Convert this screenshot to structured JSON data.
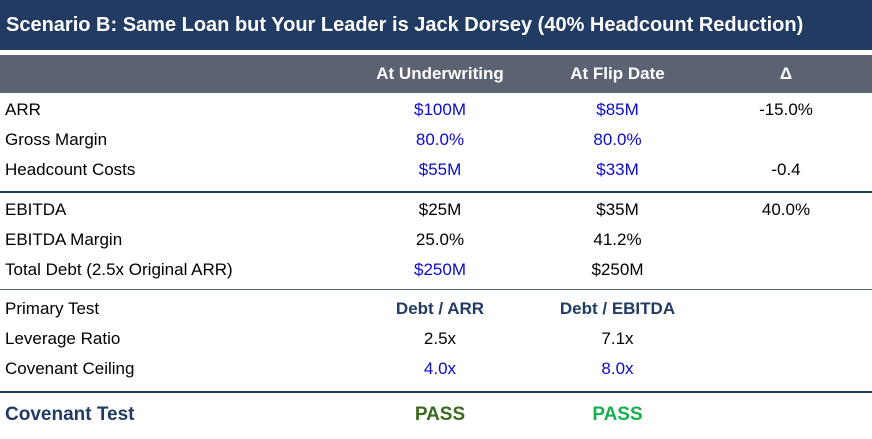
{
  "title": "Scenario B: Same Loan but Your Leader is Jack Dorsey (40% Headcount Reduction)",
  "header": {
    "col1": "At Underwriting",
    "col2": "At Flip Date",
    "col3": "Δ"
  },
  "rows": [
    {
      "label": "ARR",
      "col1": "$100M",
      "col2": "$85M",
      "col3": "-15.0%"
    },
    {
      "label": "Gross Margin",
      "col1": "80.0%",
      "col2": "80.0%",
      "col3": ""
    },
    {
      "label": "Headcount Costs",
      "col1": "$55M",
      "col2": "$33M",
      "col3": "-0.4"
    },
    {
      "label": "EBITDA",
      "col1": "$25M",
      "col2": "$35M",
      "col3": "40.0%"
    },
    {
      "label": "EBITDA Margin",
      "col1": "25.0%",
      "col2": "41.2%",
      "col3": ""
    },
    {
      "label": "Total Debt (2.5x Original ARR)",
      "col1": "$250M",
      "col2": "$250M",
      "col3": ""
    },
    {
      "label": "Primary Test",
      "col1": "Debt / ARR",
      "col2": "Debt / EBITDA",
      "col3": ""
    },
    {
      "label": "Leverage Ratio",
      "col1": "2.5x",
      "col2": "7.1x",
      "col3": ""
    },
    {
      "label": "Covenant Ceiling",
      "col1": "4.0x",
      "col2": "8.0x",
      "col3": ""
    }
  ],
  "covenant": {
    "label": "Covenant Test",
    "col1": "PASS",
    "col2": "PASS"
  },
  "colors": {
    "title_bg": "#213b63",
    "header_bg": "#5b6271",
    "input_blue": "#0b0bcc",
    "pass_dark": "#3a6b1e",
    "pass_bright": "#17b050"
  }
}
